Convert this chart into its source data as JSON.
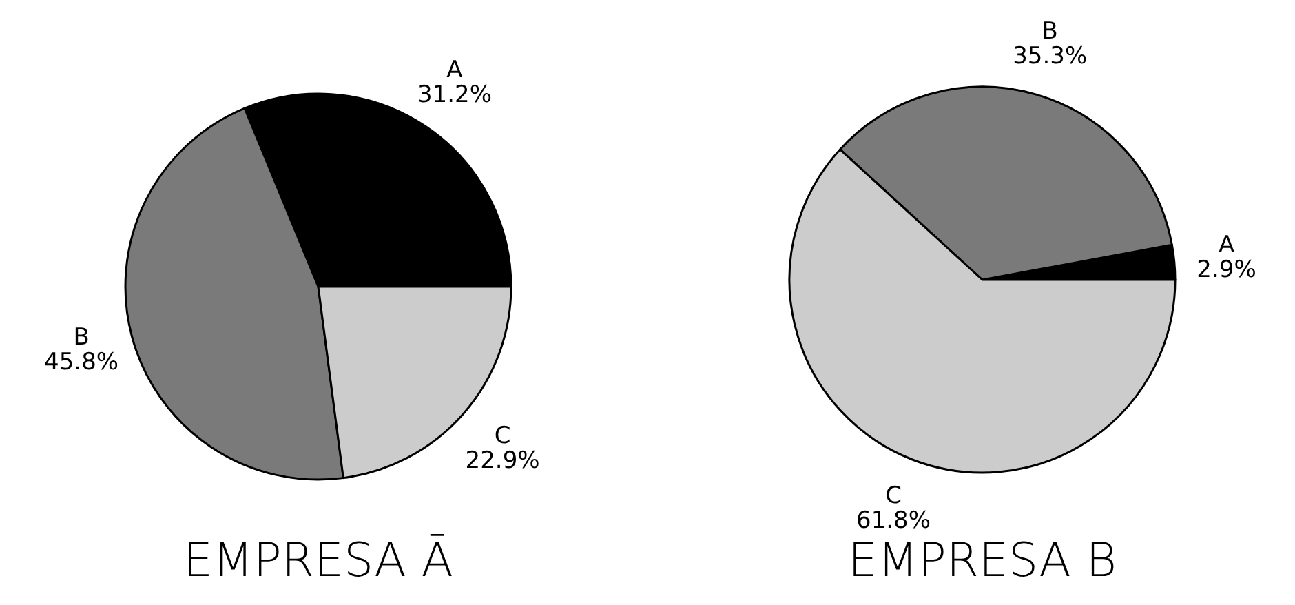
{
  "chart_data": [
    {
      "type": "pie",
      "title": "EMPRESA Ā",
      "categories": [
        "A",
        "B",
        "C"
      ],
      "values": [
        31.2,
        45.8,
        22.9
      ],
      "value_labels": [
        "31.2%",
        "45.8%",
        "22.9%"
      ],
      "colors": [
        "#000000",
        "#7a7a7a",
        "#cccccc"
      ]
    },
    {
      "type": "pie",
      "title": "EMPRESA B",
      "categories": [
        "A",
        "B",
        "C"
      ],
      "values": [
        2.9,
        35.3,
        61.8
      ],
      "value_labels": [
        "2.9%",
        "35.3%",
        "61.8%"
      ],
      "colors": [
        "#000000",
        "#7a7a7a",
        "#cccccc"
      ]
    }
  ]
}
